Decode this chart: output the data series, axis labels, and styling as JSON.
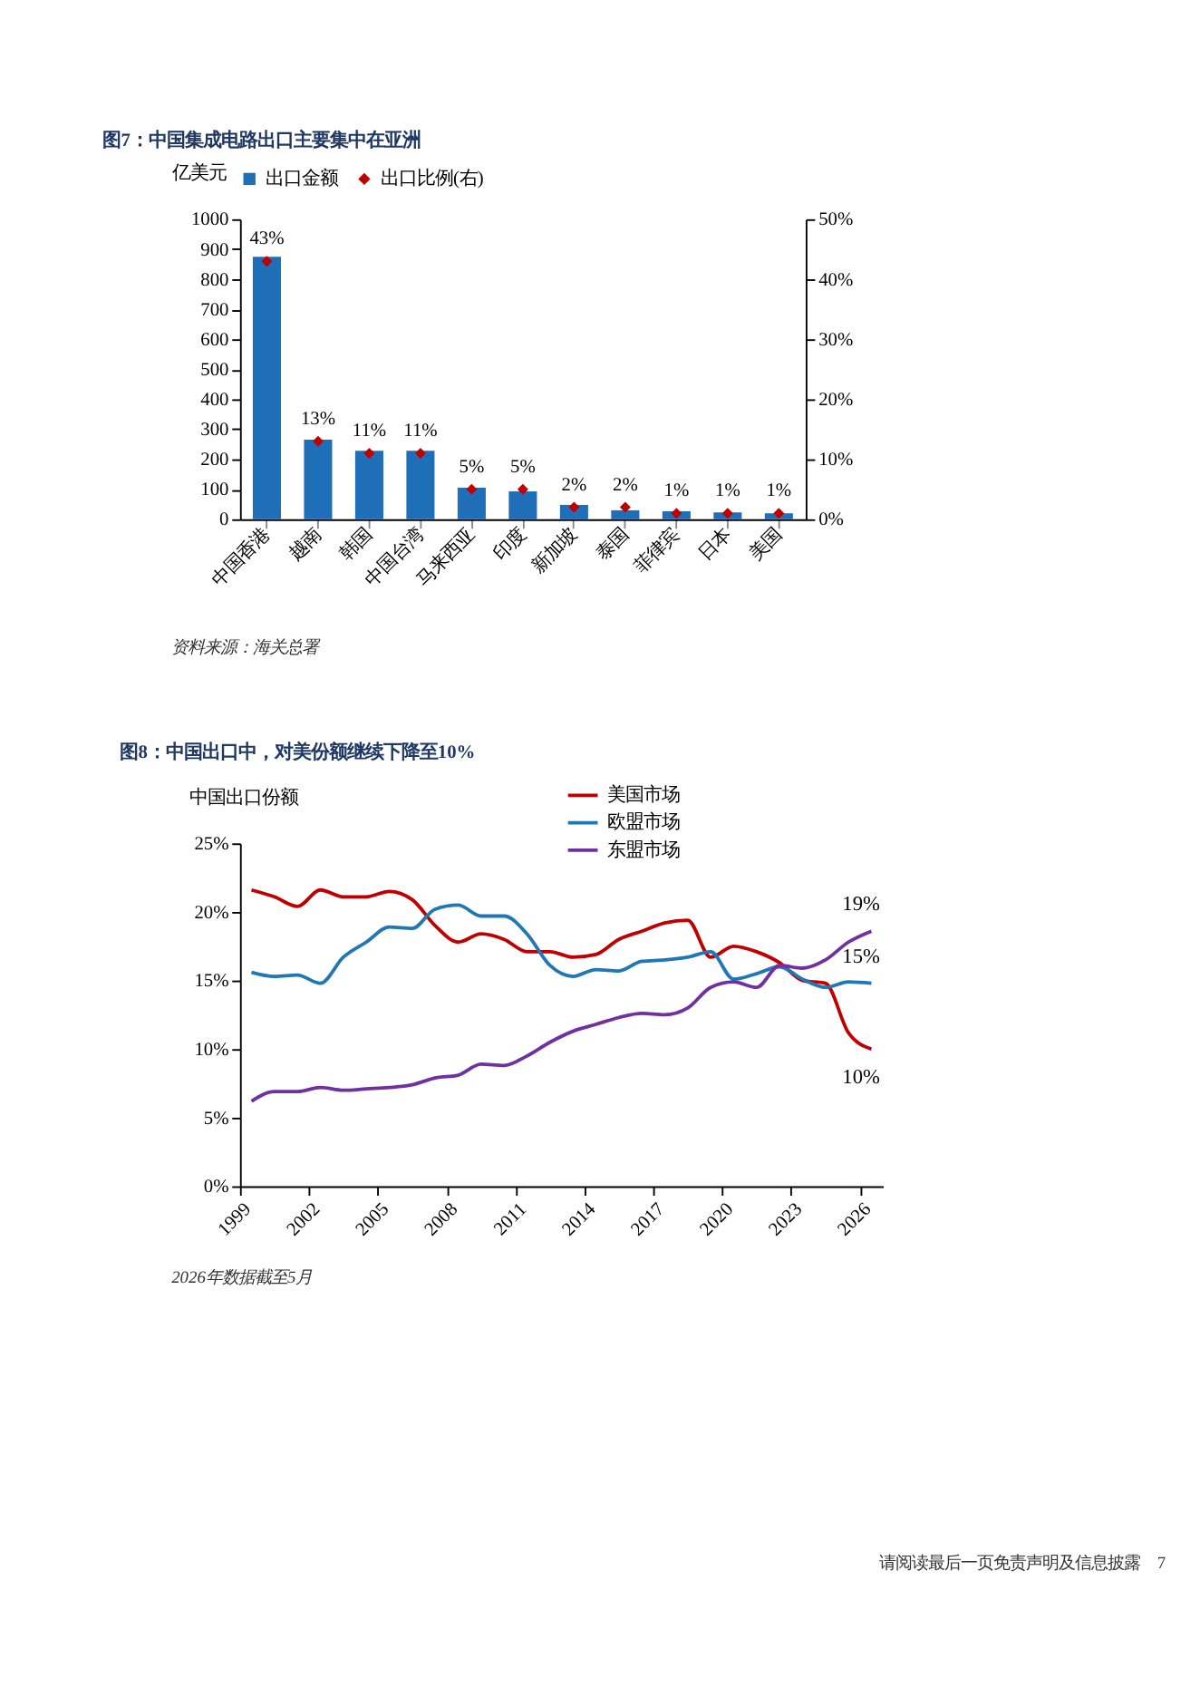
{
  "chart_data": [
    {
      "type": "bar",
      "title": "图7：中国集成电路出口主要集中在亚洲",
      "ylabel": "亿美元",
      "categories": [
        "中国香港",
        "越南",
        "韩国",
        "中国台湾",
        "马来西亚",
        "印度",
        "新加坡",
        "泰国",
        "菲律宾",
        "日本",
        "美国"
      ],
      "series": [
        {
          "name": "出口金额",
          "type": "bar",
          "color": "#1f6fb8",
          "values": [
            875,
            265,
            228,
            228,
            105,
            93,
            48,
            30,
            27,
            23,
            20
          ]
        },
        {
          "name": "出口比例(右)",
          "type": "scatter",
          "axis": "y2",
          "marker": "diamond",
          "color": "#c00000",
          "values": [
            43,
            13,
            11,
            11,
            5,
            5,
            2,
            2,
            1,
            1,
            1
          ],
          "value_labels": [
            "43%",
            "13%",
            "11%",
            "11%",
            "5%",
            "5%",
            "2%",
            "2%",
            "1%",
            "1%",
            "1%"
          ]
        }
      ],
      "ylim": [
        0,
        1000
      ],
      "yticks": [
        0,
        100,
        200,
        300,
        400,
        500,
        600,
        700,
        800,
        900,
        1000
      ],
      "y2lim": [
        0,
        50
      ],
      "y2ticks": [
        {
          "value": 0,
          "label": "0%"
        },
        {
          "value": 10,
          "label": "10%"
        },
        {
          "value": 20,
          "label": "20%"
        },
        {
          "value": 30,
          "label": "30%"
        },
        {
          "value": 40,
          "label": "40%"
        },
        {
          "value": 50,
          "label": "50%"
        }
      ],
      "grid": false,
      "legend": "top",
      "annotations": [
        "资料来源：海关总署"
      ]
    },
    {
      "type": "line",
      "title": "图8：中国出口中，对美份额继续下降至10%",
      "ylabel": "中国出口份额",
      "x": [
        1999.5,
        2000.5,
        2001.5,
        2002.5,
        2003.5,
        2004.5,
        2005.5,
        2006.5,
        2007.5,
        2008.5,
        2009.5,
        2010.5,
        2011.5,
        2012.5,
        2013.5,
        2014.5,
        2015.5,
        2016.5,
        2017.5,
        2018.5,
        2019.5,
        2020.5,
        2021.5,
        2022.5,
        2023.5,
        2024.5,
        2025.5,
        2026.5
      ],
      "series": [
        {
          "name": "美国市场",
          "color": "#c00000",
          "values": [
            21.6,
            21.1,
            20.4,
            21.6,
            21.1,
            21.1,
            21.5,
            20.9,
            19.0,
            17.8,
            18.4,
            18.0,
            17.1,
            17.1,
            16.7,
            16.9,
            18.0,
            18.6,
            19.2,
            19.4,
            16.7,
            17.5,
            17.1,
            16.3,
            15.0,
            14.8,
            11.2,
            10.0
          ],
          "value_labels": [
            null,
            null,
            null,
            null,
            null,
            null,
            null,
            null,
            null,
            null,
            null,
            null,
            null,
            null,
            null,
            null,
            null,
            null,
            null,
            null,
            null,
            null,
            null,
            null,
            null,
            null,
            null,
            "10%"
          ]
        },
        {
          "name": "欧盟市场",
          "color": "#1f78b4",
          "values": [
            15.6,
            15.3,
            15.4,
            14.8,
            16.7,
            17.8,
            18.9,
            18.8,
            20.2,
            20.5,
            19.7,
            19.7,
            18.4,
            16.1,
            15.3,
            15.8,
            15.7,
            16.4,
            16.5,
            16.7,
            17.1,
            15.1,
            15.5,
            16.0,
            15.1,
            14.5,
            14.9,
            14.8
          ],
          "value_labels": [
            null,
            null,
            null,
            null,
            null,
            null,
            null,
            null,
            null,
            null,
            null,
            null,
            null,
            null,
            null,
            null,
            null,
            null,
            null,
            null,
            null,
            null,
            null,
            null,
            null,
            null,
            null,
            "15%"
          ]
        },
        {
          "name": "东盟市场",
          "color": "#7030a0",
          "values": [
            6.2,
            6.9,
            6.9,
            7.2,
            7.0,
            7.1,
            7.2,
            7.4,
            7.9,
            8.1,
            8.9,
            8.8,
            9.5,
            10.5,
            11.3,
            11.8,
            12.3,
            12.6,
            12.5,
            13.0,
            14.5,
            14.9,
            14.5,
            16.1,
            15.9,
            16.5,
            17.8,
            18.6
          ],
          "value_labels": [
            null,
            null,
            null,
            null,
            null,
            null,
            null,
            null,
            null,
            null,
            null,
            null,
            null,
            null,
            null,
            null,
            null,
            null,
            null,
            null,
            null,
            null,
            null,
            null,
            null,
            null,
            null,
            "19%"
          ]
        }
      ],
      "xlim": [
        1999,
        2027
      ],
      "xticks": [
        1999,
        2002,
        2005,
        2008,
        2011,
        2014,
        2017,
        2020,
        2023,
        2026
      ],
      "ylim": [
        0,
        25
      ],
      "yticks": [
        {
          "value": 0,
          "label": "0%"
        },
        {
          "value": 5,
          "label": "5%"
        },
        {
          "value": 10,
          "label": "10%"
        },
        {
          "value": 15,
          "label": "15%"
        },
        {
          "value": 20,
          "label": "20%"
        },
        {
          "value": 25,
          "label": "25%"
        }
      ],
      "grid": false,
      "legend": "top",
      "marker": "none",
      "line_style": "solid",
      "annotations": [
        "2026年数据截至5月",
        "请阅读最后一页免责声明及信息披露",
        "7"
      ]
    }
  ]
}
